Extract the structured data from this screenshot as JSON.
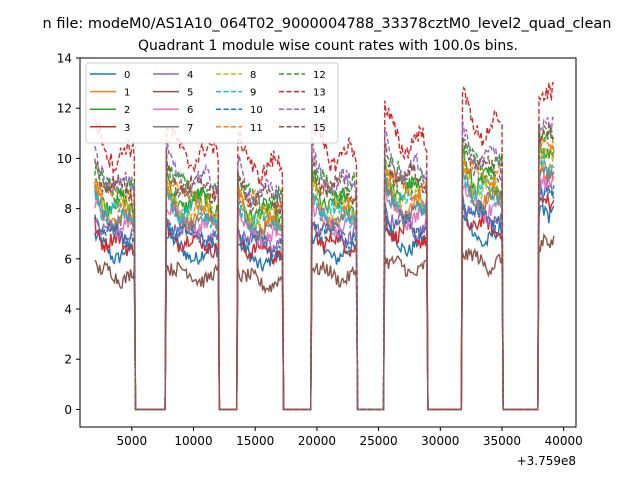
{
  "chart_data": {
    "type": "line",
    "suptitle": "n file: modeM0/AS1A10_064T02_9000004788_33378cztM0_level2_quad_clean",
    "title": "Quadrant 1 module wise count rates with 100.0s bins.",
    "xlabel": "",
    "ylabel": "",
    "x_offset_label": "+3.759e8",
    "xlim": [
      800,
      41000
    ],
    "ylim": [
      -0.7,
      14
    ],
    "xticks": [
      5000,
      10000,
      15000,
      20000,
      25000,
      30000,
      35000,
      40000
    ],
    "xtick_labels": [
      "5000",
      "10000",
      "15000",
      "20000",
      "25000",
      "30000",
      "35000",
      "40000"
    ],
    "yticks": [
      0,
      2,
      4,
      6,
      8,
      10,
      12,
      14
    ],
    "ytick_labels": [
      "0",
      "2",
      "4",
      "6",
      "8",
      "10",
      "12",
      "14"
    ],
    "grid": false,
    "legend_position": "top-left",
    "legend_columns": 4,
    "segments": [
      [
        2000,
        5200
      ],
      [
        7800,
        12000
      ],
      [
        13600,
        17200
      ],
      [
        19600,
        23200
      ],
      [
        25500,
        28900
      ],
      [
        31800,
        35000
      ],
      [
        38000,
        39200
      ]
    ],
    "gaps_value": 0,
    "series": [
      {
        "name": "0",
        "color": "#1f77b4",
        "dashed": false,
        "level": 6.2
      },
      {
        "name": "1",
        "color": "#ff7f0e",
        "dashed": false,
        "level": 7.6
      },
      {
        "name": "2",
        "color": "#2ca02c",
        "dashed": false,
        "level": 8.2
      },
      {
        "name": "3",
        "color": "#d62728",
        "dashed": false,
        "level": 6.6
      },
      {
        "name": "4",
        "color": "#9467bd",
        "dashed": false,
        "level": 7.0
      },
      {
        "name": "5",
        "color": "#8c564b",
        "dashed": false,
        "level": 5.3
      },
      {
        "name": "6",
        "color": "#e377c2",
        "dashed": false,
        "level": 7.3
      },
      {
        "name": "7",
        "color": "#7f7f7f",
        "dashed": false,
        "level": 7.5
      },
      {
        "name": "8",
        "color": "#bcbd22",
        "dashed": true,
        "level": 8.0
      },
      {
        "name": "9",
        "color": "#17becf",
        "dashed": true,
        "level": 7.8
      },
      {
        "name": "10",
        "color": "#1f77b4",
        "dashed": true,
        "level": 6.9
      },
      {
        "name": "11",
        "color": "#ff7f0e",
        "dashed": true,
        "level": 8.4
      },
      {
        "name": "12",
        "color": "#2ca02c",
        "dashed": true,
        "level": 8.7
      },
      {
        "name": "13",
        "color": "#d62728",
        "dashed": true,
        "level": 10.1
      },
      {
        "name": "14",
        "color": "#9467bd",
        "dashed": true,
        "level": 9.0
      },
      {
        "name": "15",
        "color": "#8c564b",
        "dashed": true,
        "level": 8.8
      }
    ]
  }
}
